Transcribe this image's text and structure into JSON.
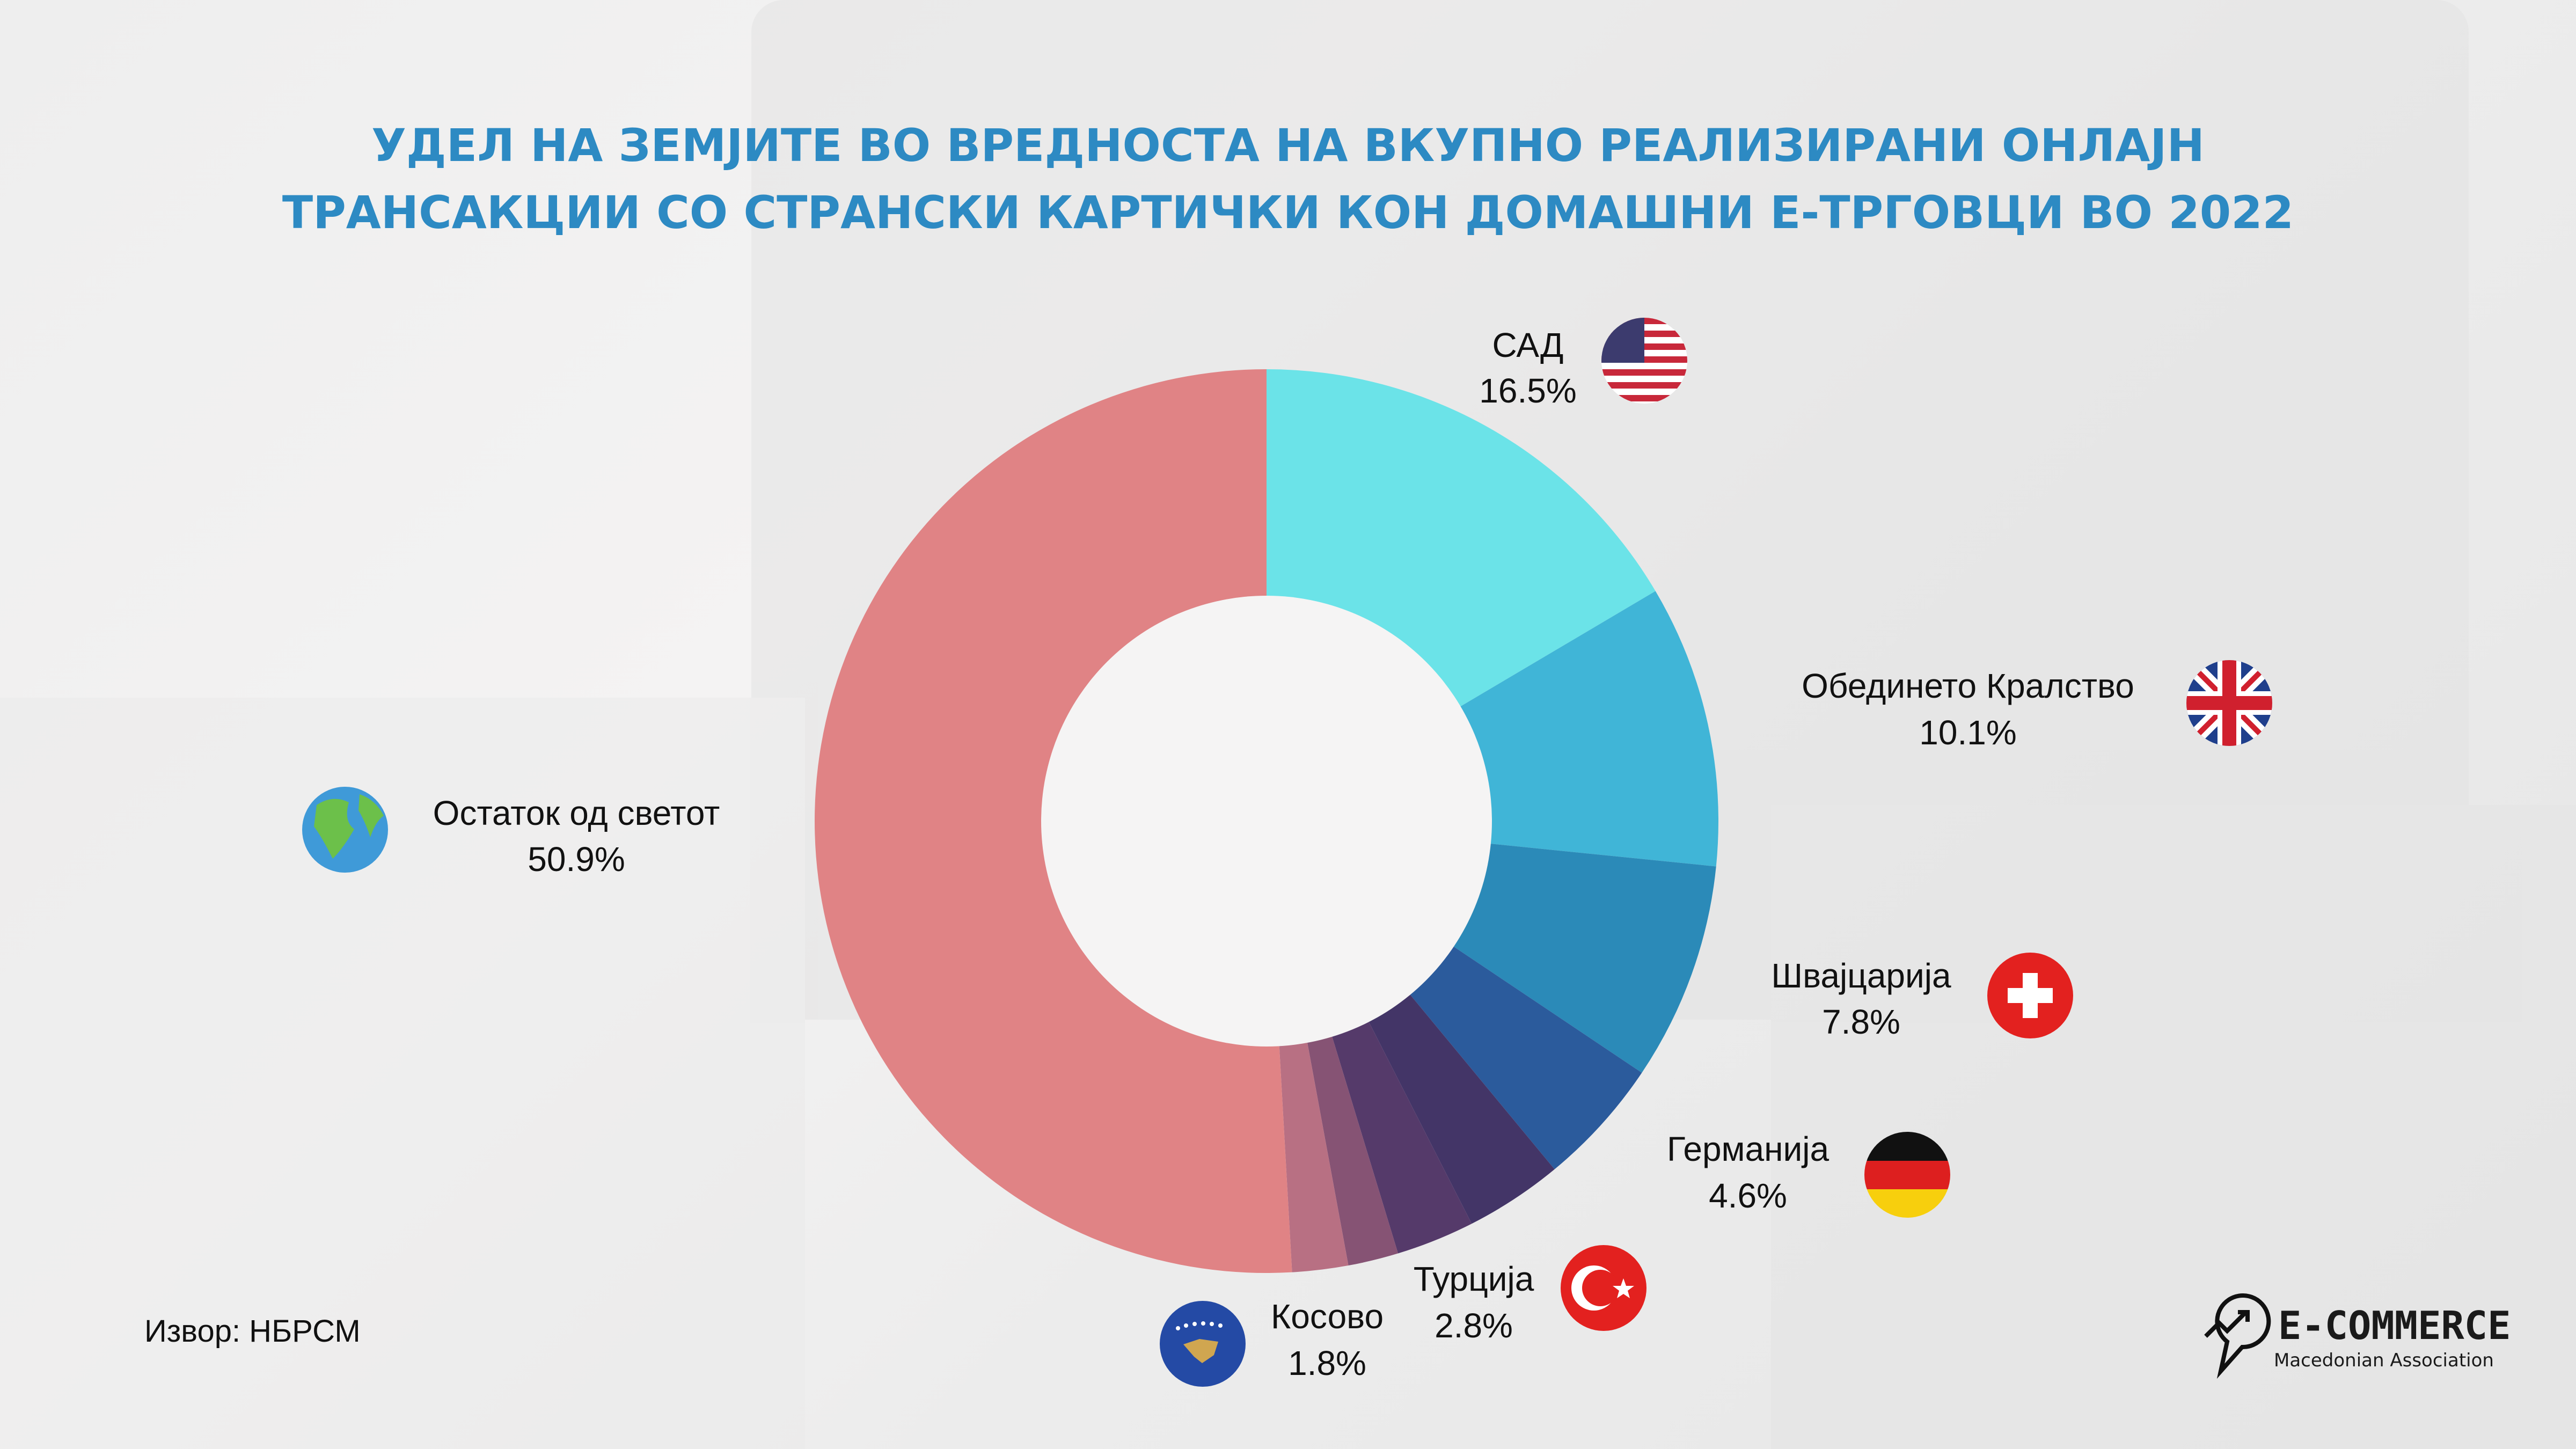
{
  "chart_data": {
    "type": "pie",
    "donut": true,
    "title": [
      "УДЕЛ НА ЗЕМЈИТЕ ВО ВРЕДНОСТА НА ВКУПНО РЕАЛИЗИРАНИ ОНЛАЈН",
      "ТРАНСАКЦИИ СО СТРАНСКИ КАРТИЧКИ КОН ДОМАШНИ Е-ТРГОВЦИ ВО 2022"
    ],
    "slices": [
      {
        "label": "САД",
        "value": 16.5,
        "value_label": "16.5%",
        "color": "#6be3e8",
        "icon": "us-flag-icon"
      },
      {
        "label": "Обединето Кралство",
        "value": 10.1,
        "value_label": "10.1%",
        "color": "#40b5d7",
        "icon": "uk-flag-icon"
      },
      {
        "label": "Швајцарија",
        "value": 7.8,
        "value_label": "7.8%",
        "color": "#2b8ab8",
        "icon": "swiss-flag-icon"
      },
      {
        "label": "Германија",
        "value": 4.6,
        "value_label": "4.6%",
        "color": "#2b5b9c",
        "icon": "german-flag-icon"
      },
      {
        "label": "",
        "value": 3.5,
        "color": "#433567"
      },
      {
        "label": "Турција",
        "value": 2.8,
        "value_label": "2.8%",
        "color": "#553a6a",
        "icon": "turkish-flag-icon"
      },
      {
        "label": "Косово",
        "value": 1.8,
        "value_label": "1.8%",
        "color": "#865374",
        "icon": "kosovo-flag-icon"
      },
      {
        "label": "",
        "value": 2.0,
        "color": "#b87083"
      },
      {
        "label": "Остаток од светот",
        "value": 50.9,
        "value_label": "50.9%",
        "color": "#e08385",
        "icon": "globe-icon"
      }
    ]
  },
  "source": "Извор: НБРСМ",
  "logo": {
    "name": "E-COMMERCE",
    "subtitle": "Macedonian Association"
  },
  "colors": {
    "title": "#2d8ac3"
  }
}
